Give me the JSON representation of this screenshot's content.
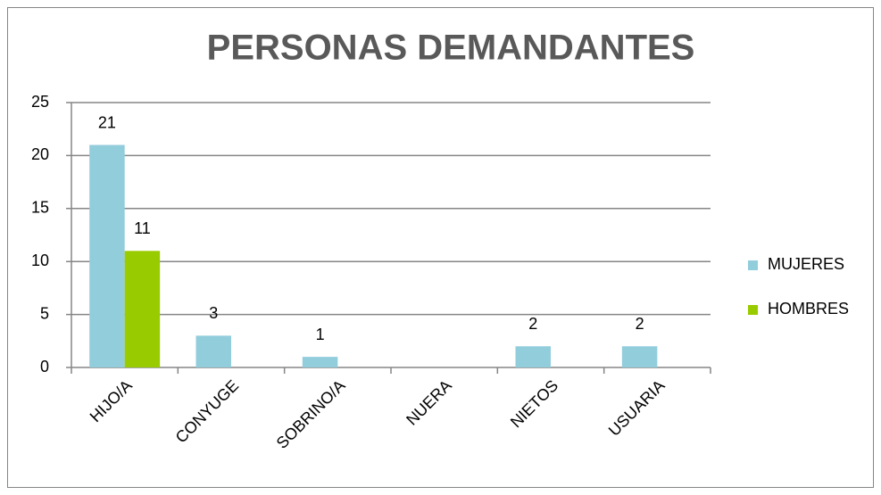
{
  "chart_data": {
    "type": "bar",
    "title": "PERSONAS DEMANDANTES",
    "categories": [
      "HIJO/A",
      "CONYUGE",
      "SOBRINO/A",
      "NUERA",
      "NIETOS",
      "USUARIA"
    ],
    "series": [
      {
        "name": "MUJERES",
        "color": "#92cddc",
        "values": [
          21,
          3,
          1,
          null,
          2,
          2
        ]
      },
      {
        "name": "HOMBRES",
        "color": "#99cc00",
        "values": [
          11,
          null,
          null,
          null,
          null,
          null
        ]
      }
    ],
    "ylim": [
      0,
      25
    ],
    "yticks": [
      0,
      5,
      10,
      15,
      20,
      25
    ],
    "grid": true,
    "legend": "right"
  }
}
